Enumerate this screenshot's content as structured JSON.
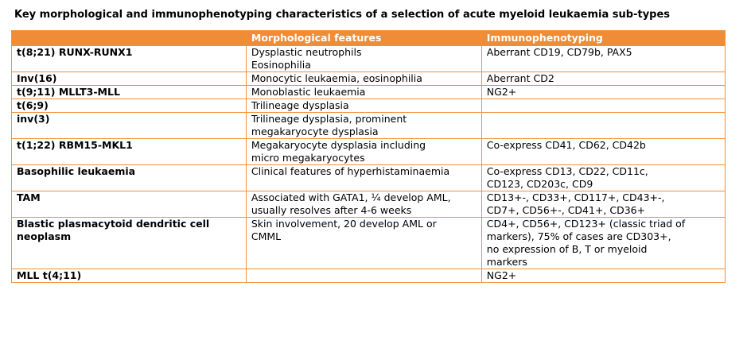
{
  "title": "Key morphological and immunophenotyping  characteristics  of a selection  of acute myeloid leukaemia  sub-types",
  "table": {
    "headers": [
      "",
      "Morphological features",
      "Immunophenotyping"
    ],
    "rows": [
      {
        "subtype": "t(8;21) RUNX-RUNX1",
        "morphology": [
          "Dysplastic neutrophils",
          "Eosinophilia"
        ],
        "immuno": [
          "Aberrant CD19, CD79b, PAX5"
        ]
      },
      {
        "subtype": "Inv(16)",
        "morphology": [
          "Monocytic leukaemia,  eosinophilia"
        ],
        "immuno": [
          "Aberrant CD2"
        ]
      },
      {
        "subtype": "t(9;11) MLLT3-MLL",
        "morphology": [
          "Monoblastic leukaemia"
        ],
        "immuno": [
          "NG2+"
        ]
      },
      {
        "subtype": "t(6;9)",
        "morphology": [
          "Trilineage  dysplasia"
        ],
        "immuno": []
      },
      {
        "subtype": "inv(3)",
        "morphology": [
          "Trilineage  dysplasia,  prominent",
          "megakaryocyte  dysplasia"
        ],
        "immuno": []
      },
      {
        "subtype": "t(1;22) RBM15-MKL1",
        "morphology": [
          "Megakaryocyte  dysplasia  including",
          "micro megakaryocytes"
        ],
        "immuno": [
          "Co-express CD41, CD62, CD42b"
        ]
      },
      {
        "subtype": "Basophilic  leukaemia",
        "morphology": [
          "Clinical  features of hyperhistaminaemia"
        ],
        "immuno": [
          "Co-express CD13, CD22, CD11c,",
          "CD123, CD203c, CD9"
        ]
      },
      {
        "subtype": "TAM",
        "morphology": [
          "Associated with GATA1, ¼ develop AML,",
          "usually resolves after 4-6 weeks"
        ],
        "immuno": [
          "CD13+-, CD33+, CD117+, CD43+-,",
          "CD7+, CD56+-, CD41+, CD36+"
        ]
      },
      {
        "subtype": "Blastic plasmacytoid  dendritic cell  neoplasm",
        "morphology": [
          "Skin involvement,  20 develop AML or",
          "CMML"
        ],
        "immuno": [
          "CD4+, CD56+, CD123+ (classic triad of",
          "markers), 75% of cases are CD303+,",
          "no expression of B, T or myeloid",
          "markers"
        ]
      },
      {
        "subtype": "MLL t(4;11)",
        "morphology": [],
        "immuno": [
          "NG2+"
        ]
      }
    ]
  },
  "colors": {
    "header_bg": "#ef8c35",
    "header_text": "#ffffff",
    "border": "#f0913a"
  }
}
